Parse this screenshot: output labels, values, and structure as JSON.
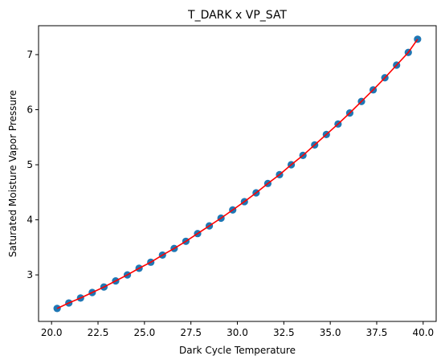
{
  "chart_data": {
    "type": "scatter",
    "title": "T_DARK x VP_SAT",
    "xlabel": "Dark Cycle Temperature",
    "ylabel": "Saturated Moisture Vapor Pressure",
    "xlim": [
      19.3,
      40.7
    ],
    "ylim": [
      2.155,
      7.525
    ],
    "xticks": [
      20.0,
      22.5,
      25.0,
      27.5,
      30.0,
      32.5,
      35.0,
      37.5,
      40.0
    ],
    "xtick_labels": [
      "20.0",
      "22.5",
      "25.0",
      "27.5",
      "30.0",
      "32.5",
      "35.0",
      "37.5",
      "40.0"
    ],
    "yticks": [
      3,
      4,
      5,
      6,
      7
    ],
    "ytick_labels": [
      "3",
      "4",
      "5",
      "6",
      "7"
    ],
    "grid": false,
    "series": [
      {
        "kind": "scatter",
        "color": "#1f77b4",
        "x": [
          20.3,
          20.93,
          21.56,
          22.19,
          22.82,
          23.45,
          24.08,
          24.71,
          25.34,
          25.97,
          26.6,
          27.23,
          27.86,
          28.49,
          29.12,
          29.75,
          30.38,
          31.01,
          31.64,
          32.27,
          32.9,
          33.53,
          34.16,
          34.79,
          35.42,
          36.05,
          36.68,
          37.31,
          37.94,
          38.57,
          39.2,
          39.7
        ],
        "y": [
          2.39,
          2.49,
          2.58,
          2.68,
          2.78,
          2.89,
          3.0,
          3.12,
          3.23,
          3.36,
          3.48,
          3.61,
          3.75,
          3.89,
          4.03,
          4.18,
          4.33,
          4.49,
          4.66,
          4.82,
          5.0,
          5.17,
          5.36,
          5.55,
          5.74,
          5.94,
          6.15,
          6.36,
          6.58,
          6.81,
          7.04,
          7.28
        ]
      },
      {
        "kind": "line",
        "color": "#ff0000",
        "x": [
          20.3,
          20.93,
          21.56,
          22.19,
          22.82,
          23.45,
          24.08,
          24.71,
          25.34,
          25.97,
          26.6,
          27.23,
          27.86,
          28.49,
          29.12,
          29.75,
          30.38,
          31.01,
          31.64,
          32.27,
          32.9,
          33.53,
          34.16,
          34.79,
          35.42,
          36.05,
          36.68,
          37.31,
          37.94,
          38.57,
          39.2,
          39.7
        ],
        "y": [
          2.39,
          2.49,
          2.58,
          2.68,
          2.78,
          2.89,
          3.0,
          3.12,
          3.23,
          3.36,
          3.48,
          3.61,
          3.75,
          3.89,
          4.03,
          4.18,
          4.33,
          4.49,
          4.66,
          4.82,
          5.0,
          5.17,
          5.36,
          5.55,
          5.74,
          5.94,
          6.15,
          6.36,
          6.58,
          6.81,
          7.04,
          7.28
        ]
      }
    ]
  }
}
